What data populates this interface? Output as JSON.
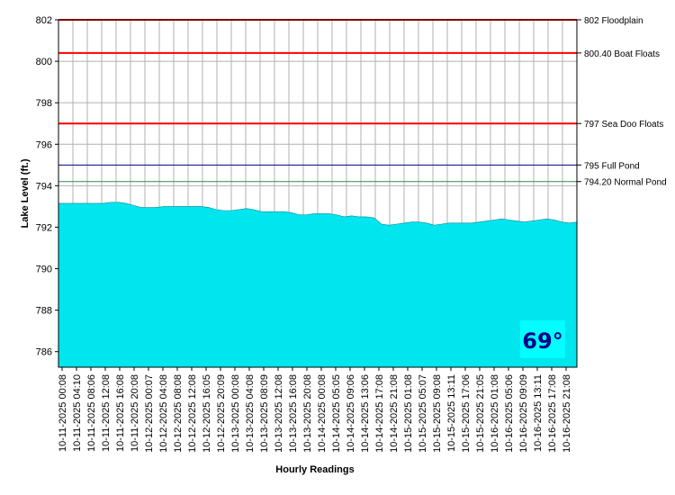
{
  "chart_data": {
    "type": "area",
    "xlabel": "Hourly Readings",
    "ylabel": "Lake Level (ft.)",
    "ylim": [
      785.25,
      802
    ],
    "yticks": [
      786,
      788,
      790,
      792,
      794,
      796,
      798,
      800,
      802
    ],
    "grid": true,
    "x_tick_labels": [
      "10-11-2025 00:08",
      "10-11-2025 04:10",
      "10-11-2025 08:06",
      "10-11-2025 12:08",
      "10-11-2025 16:08",
      "10-11-2025 20:08",
      "10-12-2025 00:07",
      "10-12-2025 04:08",
      "10-12-2025 08:08",
      "10-12-2025 12:08",
      "10-12-2025 16:05",
      "10-12-2025 20:09",
      "10-13-2025 00:08",
      "10-13-2025 04:08",
      "10-13-2025 08:09",
      "10-13-2025 12:08",
      "10-13-2025 16:08",
      "10-13-2025 20:08",
      "10-14-2025 00:08",
      "10-14-2025 05:05",
      "10-14-2025 09:06",
      "10-14-2025 13:06",
      "10-14-2025 17:08",
      "10-14-2025 21:08",
      "10-15-2025 01:08",
      "10-15-2025 05:07",
      "10-15-2025 09:08",
      "10-15-2025 13:11",
      "10-15-2025 17:06",
      "10-15-2025 21:05",
      "10-16-2025 01:08",
      "10-16-2025 05:06",
      "10-16-2025 09:09",
      "10-16-2025 13:11",
      "10-16-2025 17:08",
      "10-16-2025 21:08"
    ],
    "series": [
      {
        "color": "#00e5ee",
        "values": [
          793.15,
          793.15,
          793.15,
          793.15,
          793.15,
          793.15,
          793.15,
          793.2,
          793.2,
          793.15,
          793.05,
          792.95,
          792.95,
          792.95,
          793.0,
          793.0,
          793.0,
          793.0,
          793.0,
          793.0,
          792.95,
          792.85,
          792.8,
          792.8,
          792.85,
          792.9,
          792.85,
          792.75,
          792.75,
          792.75,
          792.75,
          792.7,
          792.6,
          792.6,
          792.65,
          792.65,
          792.65,
          792.6,
          792.5,
          792.55,
          792.5,
          792.5,
          792.45,
          792.15,
          792.1,
          792.15,
          792.2,
          792.25,
          792.25,
          792.2,
          792.1,
          792.15,
          792.2,
          792.2,
          792.2,
          792.2,
          792.25,
          792.3,
          792.35,
          792.4,
          792.35,
          792.3,
          792.25,
          792.3,
          792.35,
          792.4,
          792.35,
          792.25,
          792.2,
          792.25
        ]
      }
    ],
    "reference_lines": [
      {
        "value": 802,
        "label": "802 Floodplain",
        "color": "#ff0000"
      },
      {
        "value": 800.4,
        "label": "800.40 Boat Floats",
        "color": "#ff0000"
      },
      {
        "value": 797,
        "label": "797 Sea Doo Floats",
        "color": "#ff0000"
      },
      {
        "value": 795,
        "label": "795 Full Pond",
        "color": "#00008b"
      },
      {
        "value": 794.2,
        "label": "794.20 Normal Pond",
        "color": "#2e8b57"
      }
    ],
    "temperature": {
      "label": "69°",
      "text_color": "#00008b",
      "background": "#00ffff"
    },
    "colors": {
      "plot_background": "#ffffff",
      "grid": "#b0b0b0",
      "axis": "#000000"
    }
  }
}
